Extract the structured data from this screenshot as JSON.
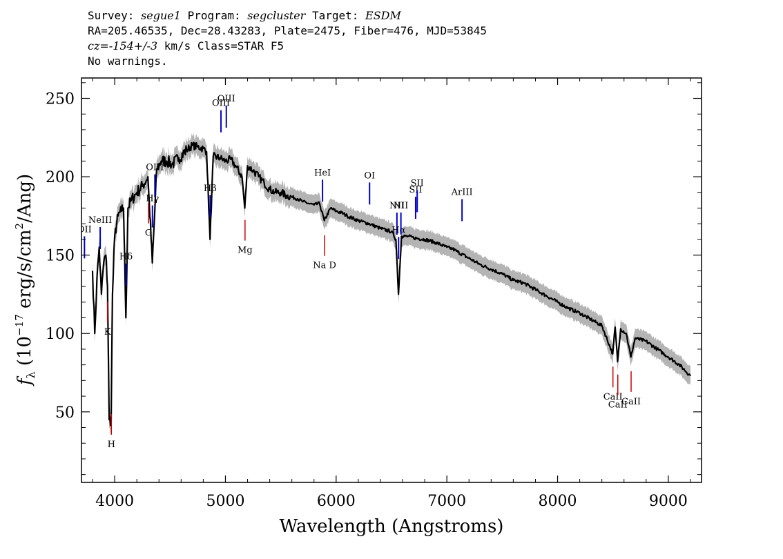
{
  "header": {
    "survey_label": "Survey: ",
    "survey": "segue1",
    "program_label": " Program: ",
    "program": "segcluster",
    "target_label": " Target: ",
    "target": "ESDM",
    "coords": "RA=205.46535, Dec=28.43283, Plate=2475, Fiber=476, MJD=53845",
    "cz": "cz=-154+/-3",
    "cz_rest": " km/s Class=STAR F5",
    "warnings": "No warnings."
  },
  "chart_data": {
    "type": "line",
    "xlabel": "Wavelength (Angstroms)",
    "ylabel": "f_λ (10^-17 erg/s/cm^2/Ang)",
    "xlim": [
      3700,
      9300
    ],
    "ylim": [
      5,
      263
    ],
    "xticks": [
      4000,
      5000,
      6000,
      7000,
      8000,
      9000
    ],
    "yticks": [
      50,
      100,
      150,
      200,
      250
    ],
    "grid": false,
    "legend": "none",
    "colors": {
      "flux": "#000000",
      "error": "#b4b4b4",
      "emission": "#0000cc",
      "absorption": "#cc0000"
    },
    "series": [
      {
        "x": [
          3800,
          3820,
          3840,
          3860,
          3880,
          3900,
          3920,
          3935,
          3950,
          3968,
          3980,
          4000,
          4030,
          4060,
          4080,
          4101,
          4120,
          4150,
          4200,
          4250,
          4300,
          4340,
          4380,
          4420,
          4470,
          4520,
          4580,
          4650,
          4700,
          4750,
          4800,
          4830,
          4861,
          4890,
          4950,
          5000,
          5050,
          5100,
          5150,
          5175,
          5200,
          5250,
          5300,
          5350,
          5400,
          5450,
          5500,
          5550,
          5600,
          5650,
          5700,
          5750,
          5800,
          5850,
          5893,
          5950,
          6000,
          6050,
          6100,
          6200,
          6300,
          6400,
          6500,
          6540,
          6563,
          6590,
          6650,
          6700,
          6800,
          6900,
          7000,
          7050,
          7100,
          7200,
          7300,
          7400,
          7500,
          7600,
          7700,
          7800,
          7900,
          8000,
          8100,
          8200,
          8300,
          8400,
          8498,
          8520,
          8542,
          8570,
          8620,
          8662,
          8700,
          8800,
          8900,
          9000,
          9100,
          9200
        ],
        "y": [
          140,
          100,
          135,
          155,
          125,
          145,
          150,
          130,
          45,
          45,
          125,
          162,
          175,
          178,
          180,
          110,
          180,
          185,
          190,
          194,
          200,
          145,
          205,
          210,
          210,
          208,
          212,
          217,
          220,
          219,
          218,
          216,
          160,
          213,
          212,
          210,
          211,
          206,
          200,
          180,
          207,
          204,
          200,
          196,
          192,
          190,
          190,
          188,
          187,
          186,
          184,
          183,
          182,
          183,
          172,
          180,
          178,
          177,
          175,
          172,
          170,
          167,
          165,
          160,
          125,
          162,
          162,
          161,
          160,
          158,
          155,
          154,
          152,
          148,
          144,
          141,
          138,
          134,
          132,
          128,
          124,
          120,
          116,
          113,
          109,
          105,
          87,
          104,
          82,
          103,
          100,
          85,
          97,
          95,
          90,
          85,
          80,
          73
        ]
      }
    ],
    "emission_lines": [
      {
        "label": "OII",
        "x": 3727
      },
      {
        "label": "NeIII",
        "x": 3869
      },
      {
        "label": "Hδ",
        "x": 4102
      },
      {
        "label": "Hγ",
        "x": 4341
      },
      {
        "label": "OIII",
        "x": 4363
      },
      {
        "label": "Hβ",
        "x": 4862
      },
      {
        "label": "OIII",
        "x": 4960
      },
      {
        "label": "OIII",
        "x": 5008
      },
      {
        "label": "HeI",
        "x": 5877
      },
      {
        "label": "OI",
        "x": 6302
      },
      {
        "label": "NII",
        "x": 6549
      },
      {
        "label": "Hα",
        "x": 6564
      },
      {
        "label": "NII",
        "x": 6585
      },
      {
        "label": "SII",
        "x": 6718
      },
      {
        "label": "SII",
        "x": 6732
      },
      {
        "label": "ArIII",
        "x": 7137
      }
    ],
    "absorption_lines": [
      {
        "label": "K",
        "x": 3935
      },
      {
        "label": "H",
        "x": 3970
      },
      {
        "label": "G",
        "x": 4305
      },
      {
        "label": "Mg",
        "x": 5177
      },
      {
        "label": "Na D",
        "x": 5896
      },
      {
        "label": "CaII",
        "x": 8500
      },
      {
        "label": "CaII",
        "x": 8544
      },
      {
        "label": "CaII",
        "x": 8664
      }
    ]
  }
}
